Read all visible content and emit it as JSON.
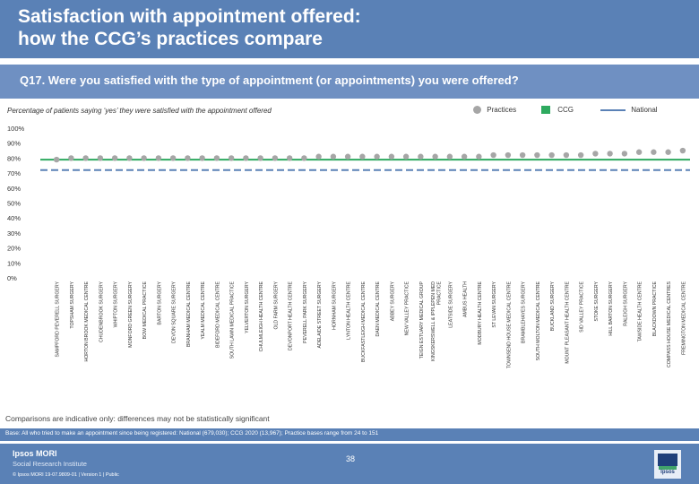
{
  "header": {
    "title_line1": "Satisfaction with appointment offered:",
    "title_line2": "how the CCG’s practices compare"
  },
  "question": "Q17. Were you satisfied with the type of appointment (or appointments) you were offered?",
  "subtitle": "Percentage of patients saying ‘yes’ they were satisfied with the appointment offered",
  "legend": {
    "practices": "Practices",
    "ccg": "CCG",
    "national": "National"
  },
  "colors": {
    "practices": "#a6a6a6",
    "ccg": "#2eaa5f",
    "national": "#5a81b6",
    "header": "#5a81b6"
  },
  "chart_data": {
    "type": "scatter",
    "ylim": [
      0,
      100
    ],
    "yticks": [
      "0%",
      "10%",
      "20%",
      "30%",
      "40%",
      "50%",
      "60%",
      "70%",
      "80%",
      "90%",
      "100%"
    ],
    "ccg_value": 79,
    "national_value": 72,
    "categories": [
      "SAMPFORD PEVERELL SURGERY",
      "TOPSHAM SURGERY",
      "HORTON BROOK MEDICAL CENTRE",
      "CHUDENBROOK SURGERY",
      "WHIPTON SURGERY",
      "MONFORD GREEN SURGERY",
      "BOW MEDICAL PRACTICE",
      "BARTON SURGERY",
      "DEVON SQUARE SURGERY",
      "BRANHAM MEDICAL CENTRE",
      "YEALM MEDICAL CENTRE",
      "BIDEFORD MEDICAL CENTRE",
      "SOUTH LAWN MEDICAL PRACTICE",
      "YELVERTON SURGERY",
      "CHULMLEIGH HEALTH CENTRE",
      "OLD FARM SURGERY",
      "DEVONPORT HEALTH CENTRE",
      "PEVERELL PARK SURGERY",
      "ADELAIDE STREET SURGERY",
      "HORNHAM SURGERY",
      "LYNTON HEALTH CENTRE",
      "BUCKFASTLEIGH MEDICAL CENTRE",
      "DAEN MEDICAL CENTRE",
      "ABBEY SURGERY",
      "NEW VALLEY PRACTICE",
      "TEIGN ESTUARY MEDICAL GROUP",
      "KINGSKERSWELL & IPPLEPEN MED PRACTICE",
      "LEATSIDE SURGERY",
      "AMBUS HEALTH",
      "MODBURY HEALTH CENTRE",
      "ST LEVAN SURGERY",
      "TOWNSEND HOUSE MEDICAL CENTRE",
      "BRAMBLEHAYES SURGERY",
      "SOUTH MOLTON MEDICAL CENTRE",
      "BUCKLAND SURGERY",
      "MOUNT PLEASANT HEALTH CENTRE",
      "SID VALLEY PRACTICE",
      "STOKE SURGERY",
      "HILL BARTON SURGERY",
      "RALEIGH SURGERY",
      "TAWSIDE HEALTH CENTRE",
      "BLACKDOWN PRACTICE",
      "COMPASS HOUSE MEDICAL CENTRES",
      "FREMINGTON MEDICAL CENTRE"
    ],
    "values": [
      79,
      80,
      80,
      80,
      80,
      80,
      80,
      80,
      80,
      80,
      80,
      80,
      80,
      80,
      80,
      80,
      80,
      80,
      81,
      81,
      81,
      81,
      81,
      81,
      81,
      81,
      81,
      81,
      81,
      81,
      82,
      82,
      82,
      82,
      82,
      82,
      82,
      83,
      83,
      83,
      84,
      84,
      84,
      85
    ]
  },
  "note": "Comparisons are indicative only: differences may not be statistically significant",
  "base": "Base: All who tried to make an appointment since being registered: National (679,030); CCG 2020 (13,967); Practice bases range from 24 to 151",
  "footer": {
    "logo_line1": "Ipsos MORI",
    "logo_line2": "Social Research Institute",
    "page": "38",
    "small": "© Ipsos MORI    19-07.9809-01 | Version 1 | Public",
    "brand": "Ipsos"
  }
}
